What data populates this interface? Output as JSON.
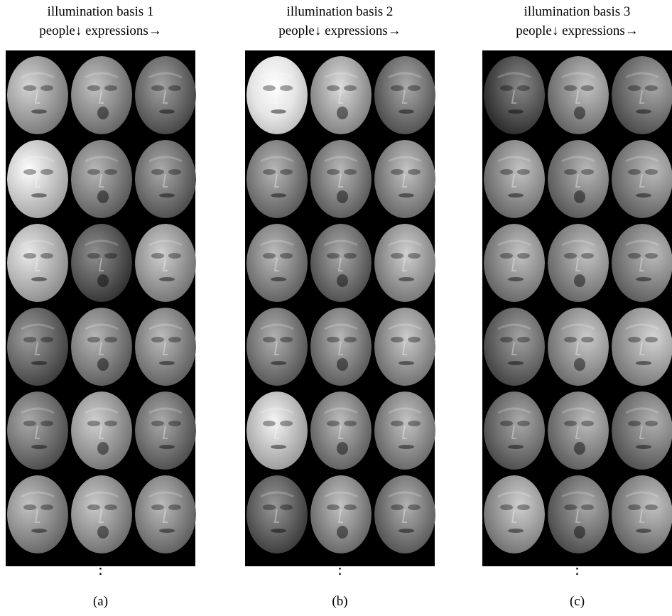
{
  "panels": [
    {
      "title_line1": "illumination basis 1",
      "title_line2": "people↓ expressions→",
      "caption": "(a)",
      "ellipsis": "⋮",
      "tones": [
        [
          0.62,
          0.55,
          0.42
        ],
        [
          0.78,
          0.5,
          0.45
        ],
        [
          0.7,
          0.35,
          0.6
        ],
        [
          0.4,
          0.5,
          0.52
        ],
        [
          0.45,
          0.6,
          0.45
        ],
        [
          0.55,
          0.58,
          0.52
        ]
      ]
    },
    {
      "title_line1": "illumination basis 2",
      "title_line2": "people↓ expressions→",
      "caption": "(b)",
      "ellipsis": "⋮",
      "tones": [
        [
          0.9,
          0.65,
          0.45
        ],
        [
          0.5,
          0.5,
          0.55
        ],
        [
          0.52,
          0.45,
          0.6
        ],
        [
          0.48,
          0.5,
          0.58
        ],
        [
          0.75,
          0.52,
          0.55
        ],
        [
          0.38,
          0.55,
          0.48
        ]
      ]
    },
    {
      "title_line1": "illumination basis 3",
      "title_line2": "people↓ expressions→",
      "caption": "(c)",
      "ellipsis": "⋮",
      "tones": [
        [
          0.32,
          0.55,
          0.45
        ],
        [
          0.55,
          0.5,
          0.52
        ],
        [
          0.55,
          0.55,
          0.52
        ],
        [
          0.42,
          0.58,
          0.62
        ],
        [
          0.45,
          0.52,
          0.48
        ],
        [
          0.6,
          0.45,
          0.55
        ]
      ]
    }
  ]
}
